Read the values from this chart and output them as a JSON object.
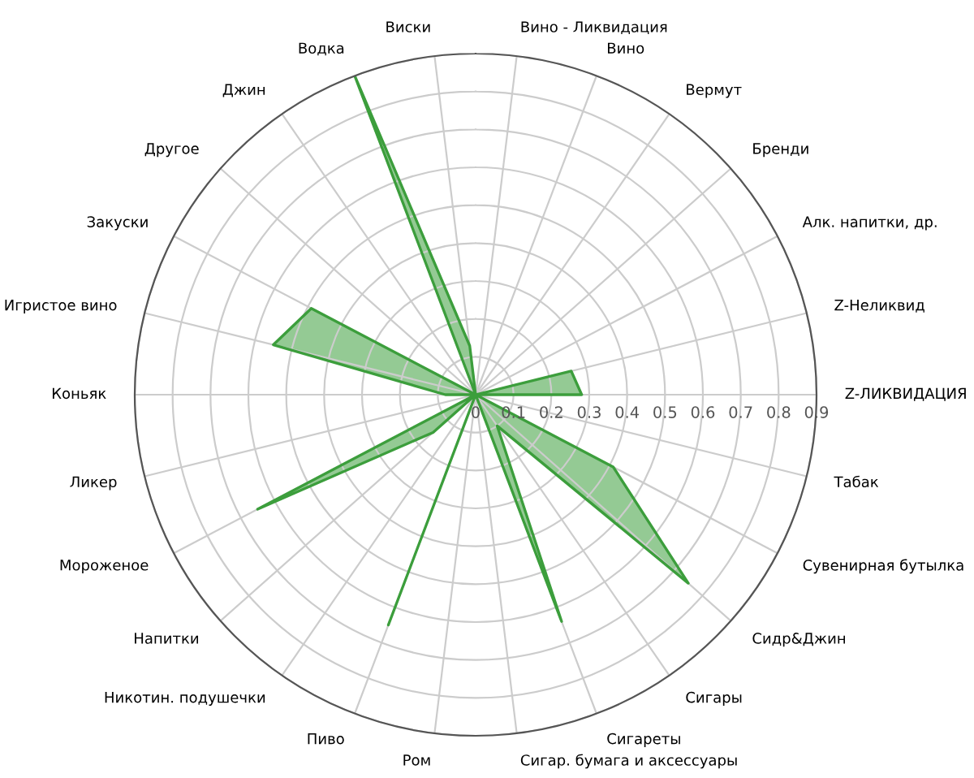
{
  "chart_data": {
    "type": "radar",
    "categories": [
      "Вино - Ликвидация",
      "Вино",
      "Вермут",
      "Бренди",
      "Алк. напитки, др.",
      "Z-Неликвид",
      "Z-ЛИКВИДАЦИЯ",
      "Табак",
      "Сувенирная бутылка",
      "Сидр&Джин",
      "Сигары",
      "Сигареты",
      "Сигар. бумага и аксессуары",
      "Ром",
      "Пиво",
      "Никотин. подушечки",
      "Напитки",
      "Мороженое",
      "Ликер",
      "Коньяк",
      "Игристое вино",
      "Закуски",
      "Другое",
      "Джин",
      "Водка",
      "Виски"
    ],
    "series": [
      {
        "color": "#3c9e3c",
        "values": [
          0,
          0,
          0,
          0,
          0,
          0.26,
          0.28,
          0,
          0.41,
          0.75,
          0.1,
          0.64,
          0,
          0,
          0.65,
          0,
          0.15,
          0.65,
          0,
          0.08,
          0.55,
          0.49,
          0,
          0,
          0.9,
          0.13
        ]
      }
    ],
    "ylim": [
      0,
      0.9
    ],
    "yticks": [
      0,
      0.1,
      0.2,
      0.3,
      0.4,
      0.5,
      0.6,
      0.7,
      0.8,
      0.9
    ],
    "grid": true
  }
}
